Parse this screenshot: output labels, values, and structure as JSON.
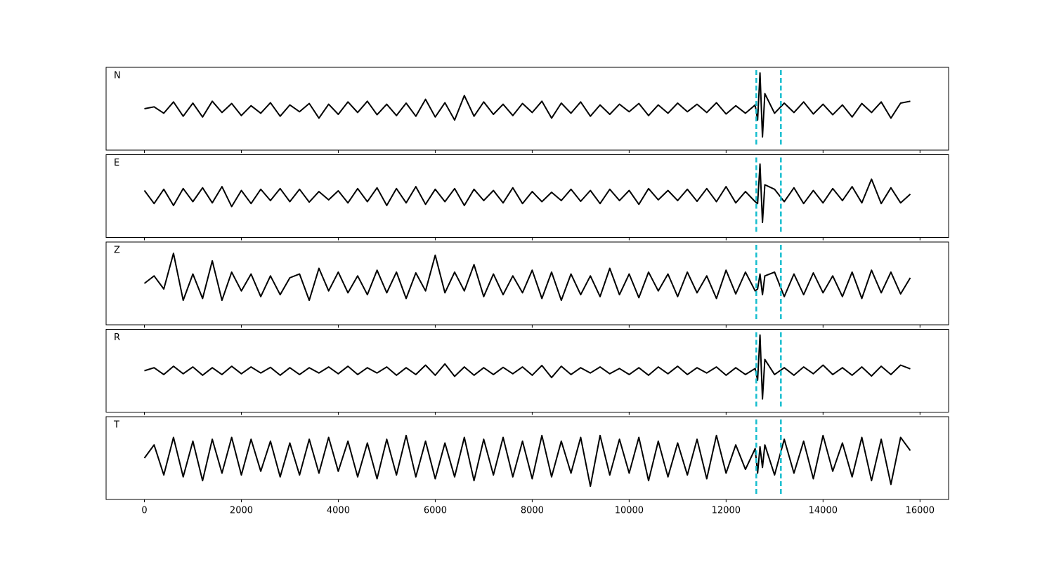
{
  "chart_data": {
    "type": "line",
    "x": [
      0,
      200,
      400,
      600,
      800,
      1000,
      1200,
      1400,
      1600,
      1800,
      2000,
      2200,
      2400,
      2600,
      2800,
      3000,
      3200,
      3400,
      3600,
      3800,
      4000,
      4200,
      4400,
      4600,
      4800,
      5000,
      5200,
      5400,
      5600,
      5800,
      6000,
      6200,
      6400,
      6600,
      6800,
      7000,
      7200,
      7400,
      7600,
      7800,
      8000,
      8200,
      8400,
      8600,
      8800,
      9000,
      9200,
      9400,
      9600,
      9800,
      10000,
      10200,
      10400,
      10600,
      10800,
      11000,
      11200,
      11400,
      11600,
      11800,
      12000,
      12200,
      12400,
      12600,
      12650,
      12700,
      12750,
      12800,
      13000,
      13200,
      13400,
      13600,
      13800,
      14000,
      14200,
      14400,
      14600,
      14800,
      15000,
      15200,
      15400,
      15600,
      15800
    ],
    "series": [
      {
        "name": "N",
        "color": "#000000",
        "values": [
          0,
          5,
          -12,
          18,
          -20,
          15,
          -22,
          20,
          -10,
          14,
          -18,
          8,
          -12,
          16,
          -20,
          10,
          -8,
          14,
          -25,
          12,
          -15,
          18,
          -10,
          20,
          -16,
          12,
          -18,
          15,
          -20,
          25,
          -22,
          16,
          -30,
          35,
          -20,
          18,
          -15,
          12,
          -18,
          14,
          -10,
          20,
          -25,
          15,
          -12,
          18,
          -20,
          10,
          -15,
          12,
          -8,
          14,
          -18,
          10,
          -12,
          15,
          -8,
          12,
          -10,
          16,
          -14,
          8,
          -12,
          10,
          -30,
          95,
          -75,
          40,
          -12,
          15,
          -10,
          18,
          -14,
          12,
          -16,
          10,
          -22,
          14,
          -10,
          18,
          -25,
          15,
          20
        ]
      },
      {
        "name": "E",
        "color": "#000000",
        "values": [
          15,
          -20,
          18,
          -25,
          20,
          -15,
          22,
          -18,
          25,
          -28,
          15,
          -20,
          18,
          -12,
          20,
          -15,
          18,
          -16,
          12,
          -10,
          14,
          -18,
          20,
          -15,
          22,
          -25,
          20,
          -18,
          25,
          -22,
          18,
          -15,
          20,
          -25,
          18,
          -12,
          15,
          -18,
          22,
          -20,
          12,
          -15,
          10,
          -12,
          18,
          -14,
          15,
          -20,
          18,
          -12,
          15,
          -22,
          20,
          -10,
          15,
          -12,
          18,
          -14,
          20,
          -15,
          25,
          -18,
          12,
          -15,
          -20,
          85,
          -70,
          30,
          18,
          -15,
          22,
          -20,
          15,
          -18,
          20,
          -12,
          25,
          -18,
          45,
          -20,
          22,
          -18,
          5
        ]
      },
      {
        "name": "Z",
        "color": "#000000",
        "values": [
          0,
          20,
          -15,
          80,
          -45,
          25,
          -40,
          60,
          -45,
          30,
          -20,
          25,
          -35,
          20,
          -30,
          15,
          25,
          -45,
          40,
          -20,
          30,
          -25,
          20,
          -30,
          35,
          -25,
          30,
          -40,
          28,
          -20,
          75,
          -25,
          30,
          -20,
          50,
          -35,
          25,
          -30,
          20,
          -25,
          35,
          -40,
          30,
          -45,
          25,
          -30,
          20,
          -35,
          40,
          -30,
          25,
          -38,
          30,
          -20,
          25,
          -35,
          30,
          -25,
          20,
          -40,
          35,
          -28,
          30,
          -20,
          -15,
          25,
          -30,
          20,
          30,
          -35,
          25,
          -30,
          28,
          -25,
          20,
          -35,
          30,
          -40,
          35,
          -25,
          30,
          -28,
          15
        ]
      },
      {
        "name": "R",
        "color": "#000000",
        "values": [
          0,
          8,
          -10,
          12,
          -8,
          10,
          -12,
          8,
          -10,
          12,
          -8,
          10,
          -6,
          9,
          -12,
          8,
          -10,
          8,
          -6,
          10,
          -8,
          12,
          -10,
          8,
          -6,
          10,
          -12,
          8,
          -10,
          15,
          -12,
          18,
          -15,
          10,
          -12,
          8,
          -10,
          9,
          -8,
          10,
          -12,
          14,
          -18,
          12,
          -10,
          8,
          -6,
          10,
          -8,
          6,
          -10,
          8,
          -12,
          10,
          -8,
          12,
          -10,
          8,
          -6,
          10,
          -12,
          8,
          -10,
          6,
          -25,
          95,
          -75,
          30,
          -10,
          8,
          -12,
          10,
          -8,
          15,
          -10,
          8,
          -12,
          10,
          -14,
          12,
          -10,
          15,
          5
        ]
      },
      {
        "name": "T",
        "color": "#000000",
        "values": [
          0,
          35,
          -45,
          55,
          -50,
          45,
          -60,
          50,
          -40,
          55,
          -45,
          50,
          -35,
          45,
          -50,
          40,
          -45,
          50,
          -40,
          55,
          -35,
          45,
          -50,
          40,
          -55,
          50,
          -45,
          60,
          -50,
          45,
          -55,
          40,
          -50,
          55,
          -60,
          50,
          -45,
          55,
          -50,
          45,
          -55,
          60,
          -50,
          45,
          -40,
          55,
          -75,
          60,
          -45,
          50,
          -40,
          55,
          -60,
          45,
          -50,
          40,
          -45,
          50,
          -55,
          60,
          -40,
          35,
          -30,
          25,
          -40,
          30,
          -25,
          35,
          -45,
          50,
          -40,
          45,
          -55,
          60,
          -35,
          40,
          -50,
          55,
          -60,
          50,
          -70,
          55,
          20
        ]
      }
    ],
    "xlim": [
      -790,
      16590
    ],
    "xticks": [
      0,
      2000,
      4000,
      6000,
      8000,
      10000,
      12000,
      14000,
      16000
    ],
    "ylim": [
      -110,
      110
    ],
    "vlines": [
      12623,
      13130
    ],
    "vline_color": "#17becf"
  }
}
